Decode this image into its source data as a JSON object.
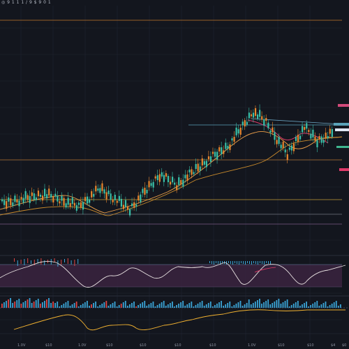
{
  "header": {
    "title": "◎ 9 1 1 1 / 9 $ 9 0 1"
  },
  "x_axis_labels": [
    "1.0V",
    "$10",
    "1.0V",
    "$10",
    "$10",
    "$10",
    "$10",
    "1.0V",
    "$10",
    "$10",
    "$4",
    "$0"
  ],
  "colors": {
    "background": "#13161e",
    "grid": "#222633",
    "up_candle": "#39c0a8",
    "down_candle": "#e8872f",
    "ma_fast": "#f0a14a",
    "ma_slow": "#d88a2c",
    "rsi_band": "#3b2340",
    "rsi_line": "#e7e1e1",
    "macd_line": "#f2b230",
    "volume_up": "#3aa4d6",
    "volume_down": "#e14444",
    "trendline": "#5aa2b8",
    "accent_pink": "#e03a6a"
  }
}
